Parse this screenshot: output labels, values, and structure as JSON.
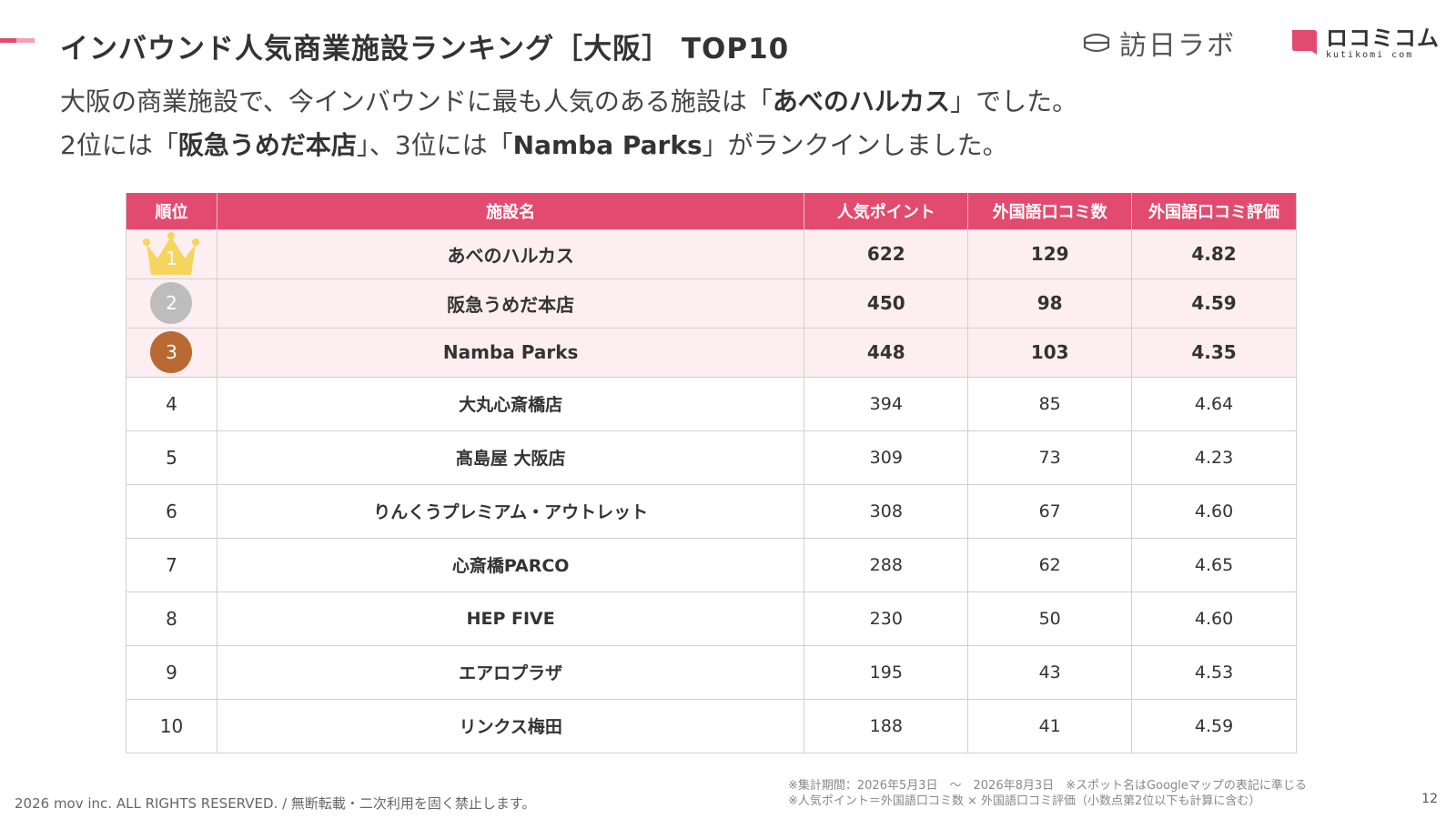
{
  "header": {
    "title": "インバウンド人気商業施設ランキング［大阪］ TOP10",
    "logo_houni": "訪日ラボ",
    "logo_kuti_main": "ロコミコム",
    "logo_kuti_sub": "kutikomi com"
  },
  "lead": {
    "l1_pre": "大阪の商業施設で、今インバウンドに最も人気のある施設は「",
    "l1_bold": "あべのハルカス",
    "l1_post": "」でした。",
    "l2_a": "2位には「",
    "l2_b": "阪急うめだ本店",
    "l2_c": "」、3位には「",
    "l2_d": "Namba Parks",
    "l2_e": "」がランクインしました。"
  },
  "table": {
    "headers": [
      "順位",
      "施設名",
      "人気ポイント",
      "外国語口コミ数",
      "外国語口コミ評価"
    ],
    "rows": [
      {
        "rank": "1",
        "name": "あべのハルカス",
        "points": "622",
        "count": "129",
        "rating": "4.82"
      },
      {
        "rank": "2",
        "name": "阪急うめだ本店",
        "points": "450",
        "count": "98",
        "rating": "4.59"
      },
      {
        "rank": "3",
        "name": "Namba Parks",
        "points": "448",
        "count": "103",
        "rating": "4.35"
      },
      {
        "rank": "4",
        "name": "大丸心斎橋店",
        "points": "394",
        "count": "85",
        "rating": "4.64"
      },
      {
        "rank": "5",
        "name": "髙島屋 大阪店",
        "points": "309",
        "count": "73",
        "rating": "4.23"
      },
      {
        "rank": "6",
        "name": "りんくうプレミアム・アウトレット",
        "points": "308",
        "count": "67",
        "rating": "4.60"
      },
      {
        "rank": "7",
        "name": "心斎橋PARCO",
        "points": "288",
        "count": "62",
        "rating": "4.65"
      },
      {
        "rank": "8",
        "name": "HEP FIVE",
        "points": "230",
        "count": "50",
        "rating": "4.60"
      },
      {
        "rank": "9",
        "name": "エアロプラザ",
        "points": "195",
        "count": "43",
        "rating": "4.53"
      },
      {
        "rank": "10",
        "name": "リンクス梅田",
        "points": "188",
        "count": "41",
        "rating": "4.59"
      }
    ]
  },
  "footer": {
    "copyright": "2026 mov inc. ALL RIGHTS RESERVED. / 無断転載・二次利用を固く禁止します。",
    "note1": "※集計期間：2026年5月3日　～　2026年8月3日　※スポット名はGoogleマップの表記に準じる",
    "note2": "※人気ポイント＝外国語口コミ数 × 外国語口コミ評価（小数点第2位以下も計算に含む）",
    "page": "12"
  },
  "colors": {
    "accent": "#e34a6f",
    "accent_light": "#f3a2b3",
    "top_row_bg": "#fdeef2",
    "gold": "#f7d45c",
    "silver": "#bdbdbd",
    "bronze": "#b86a32"
  },
  "icons": {
    "houni_logo": "lantern-icon",
    "kuti_logo": "speech-bubble-icon",
    "rank1": "crown-icon",
    "rank2": "silver-medal-icon",
    "rank3": "bronze-medal-icon"
  }
}
